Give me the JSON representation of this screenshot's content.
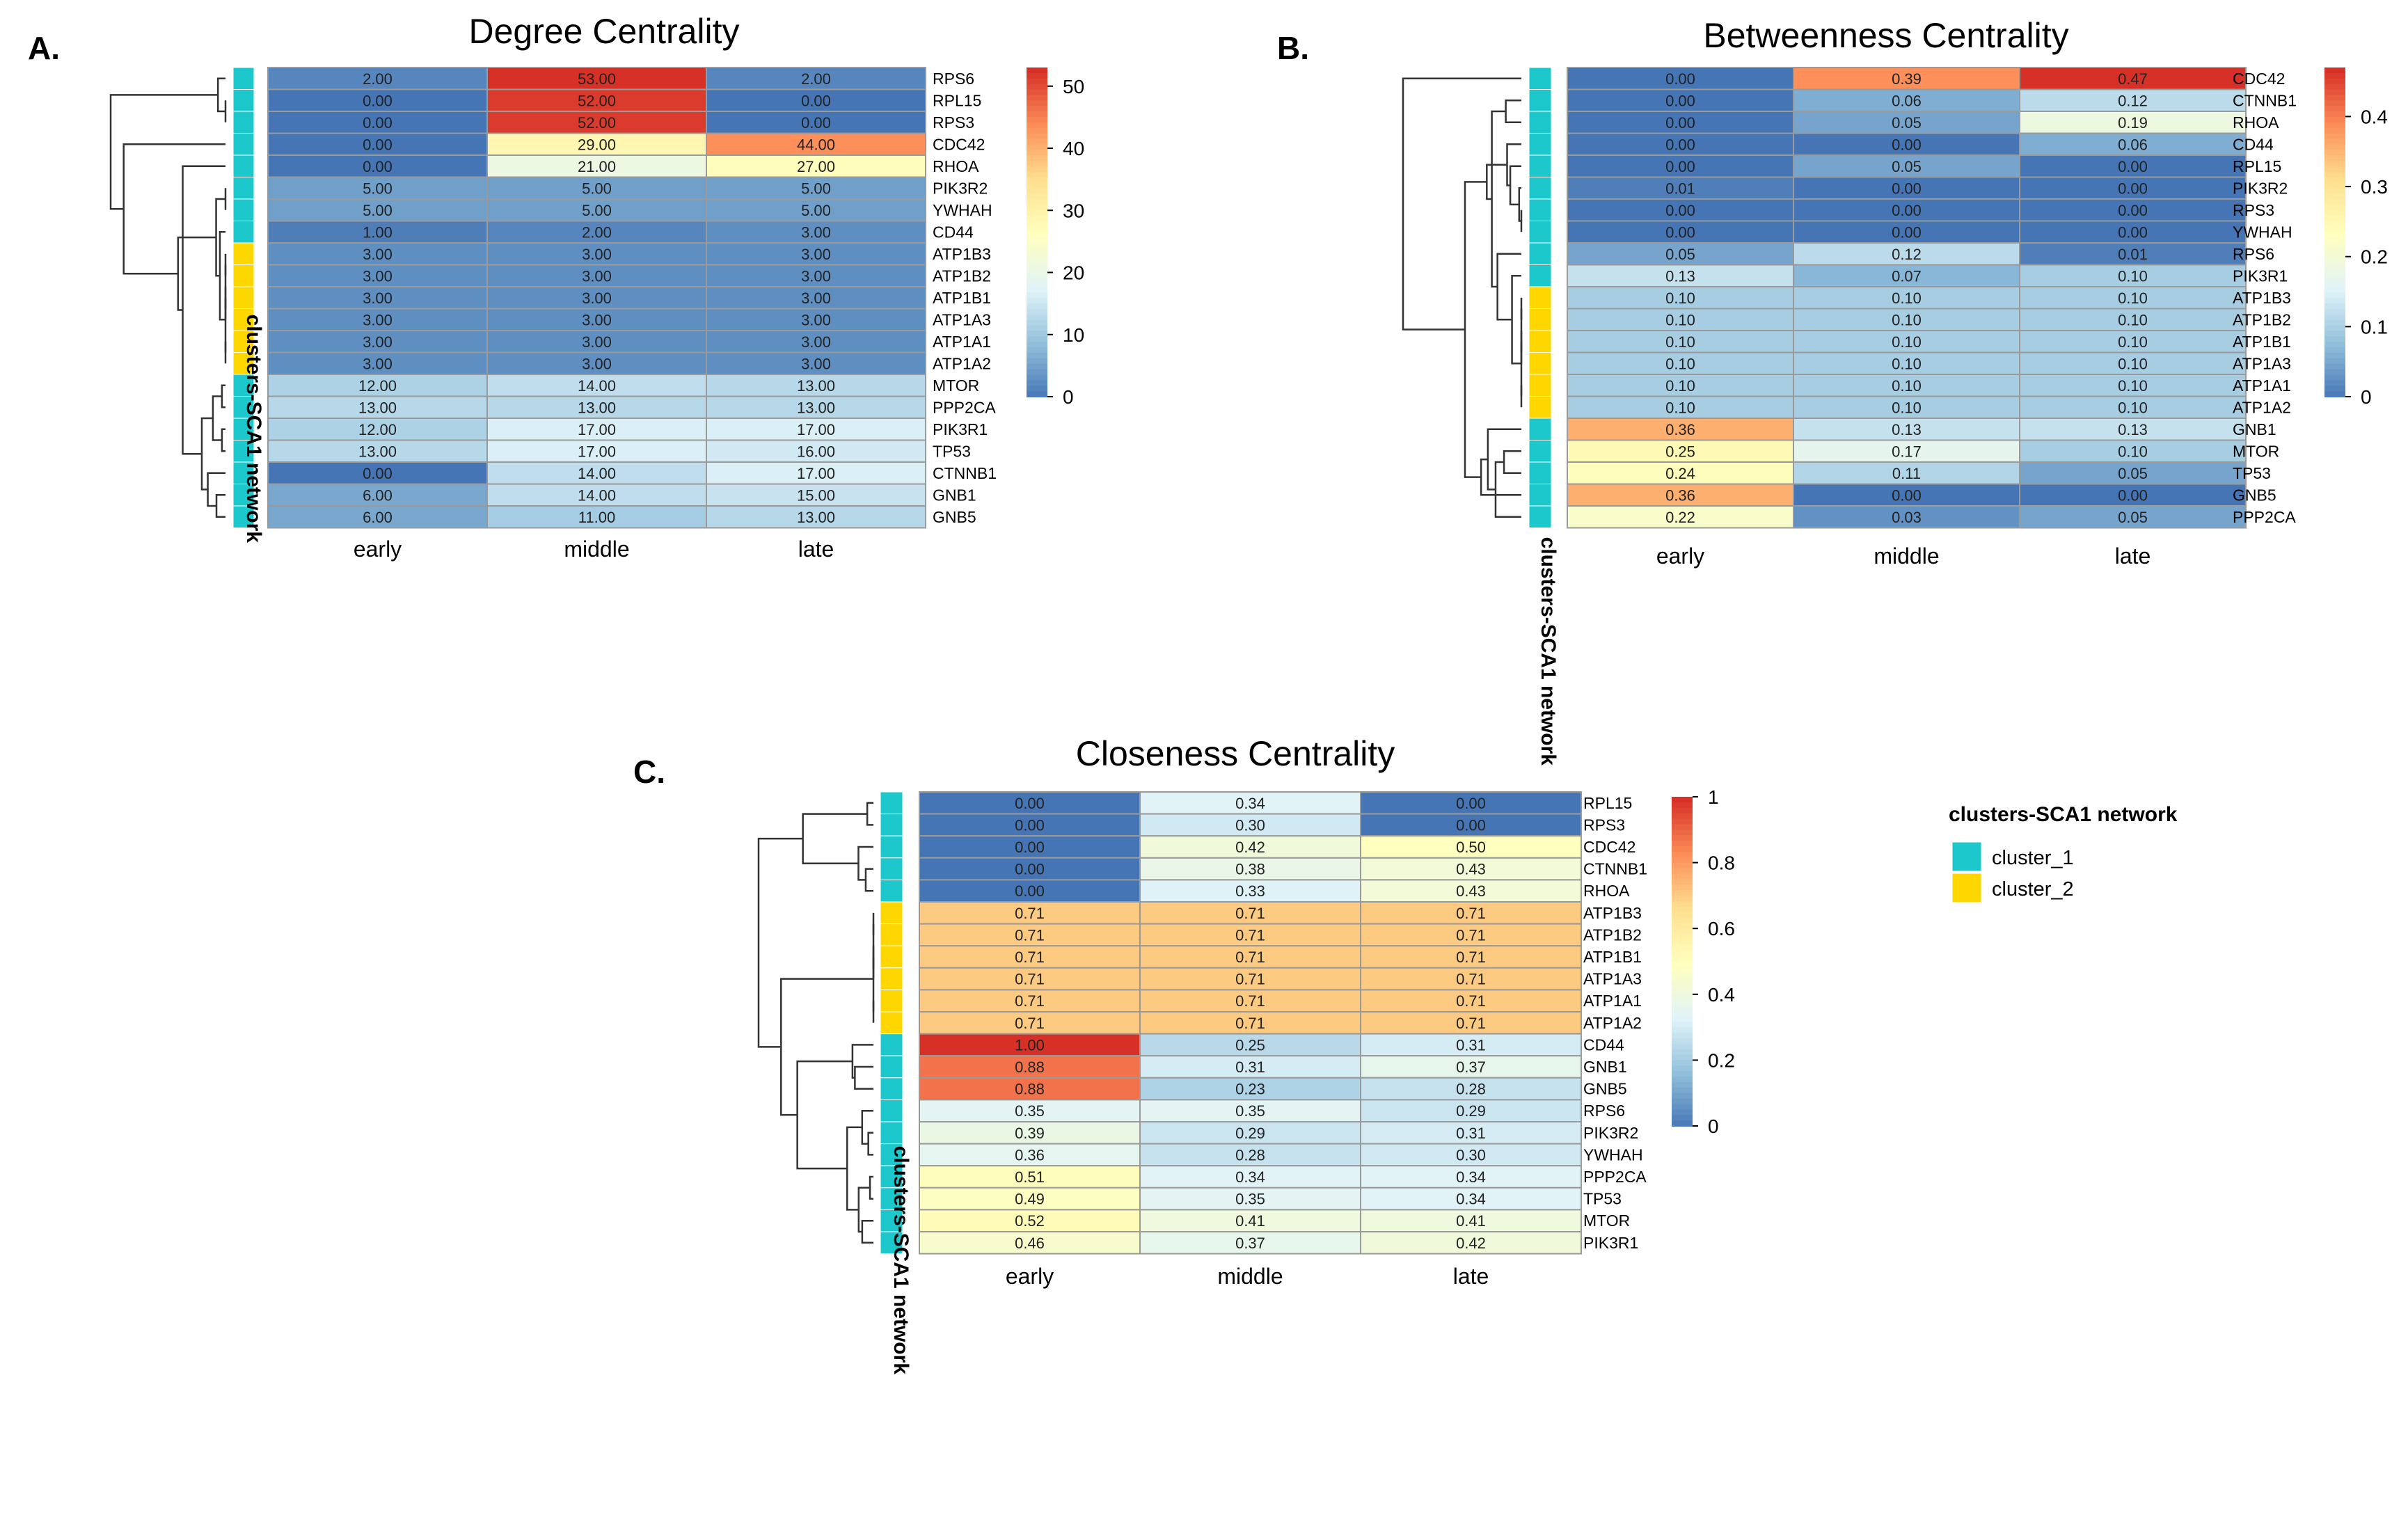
{
  "chart_data": [
    {
      "type": "heatmap",
      "panel_letter": "A.",
      "title": "Degree Centrality",
      "columns": [
        "early",
        "middle",
        "late"
      ],
      "rows": [
        "RPS6",
        "RPL15",
        "RPS3",
        "CDC42",
        "RHOA",
        "PIK3R2",
        "YWHAH",
        "CD44",
        "ATP1B3",
        "ATP1B2",
        "ATP1B1",
        "ATP1A3",
        "ATP1A1",
        "ATP1A2",
        "MTOR",
        "PPP2CA",
        "PIK3R1",
        "TP53",
        "CTNNB1",
        "GNB1",
        "GNB5"
      ],
      "values": [
        [
          "2.00",
          "53.00",
          "2.00"
        ],
        [
          "0.00",
          "52.00",
          "0.00"
        ],
        [
          "0.00",
          "52.00",
          "0.00"
        ],
        [
          "0.00",
          "29.00",
          "44.00"
        ],
        [
          "0.00",
          "21.00",
          "27.00"
        ],
        [
          "5.00",
          "5.00",
          "5.00"
        ],
        [
          "5.00",
          "5.00",
          "5.00"
        ],
        [
          "1.00",
          "2.00",
          "3.00"
        ],
        [
          "3.00",
          "3.00",
          "3.00"
        ],
        [
          "3.00",
          "3.00",
          "3.00"
        ],
        [
          "3.00",
          "3.00",
          "3.00"
        ],
        [
          "3.00",
          "3.00",
          "3.00"
        ],
        [
          "3.00",
          "3.00",
          "3.00"
        ],
        [
          "3.00",
          "3.00",
          "3.00"
        ],
        [
          "12.00",
          "14.00",
          "13.00"
        ],
        [
          "13.00",
          "13.00",
          "13.00"
        ],
        [
          "12.00",
          "17.00",
          "17.00"
        ],
        [
          "13.00",
          "17.00",
          "16.00"
        ],
        [
          "0.00",
          "14.00",
          "17.00"
        ],
        [
          "6.00",
          "14.00",
          "15.00"
        ],
        [
          "6.00",
          "11.00",
          "13.00"
        ]
      ],
      "clusters": [
        "cluster_1",
        "cluster_1",
        "cluster_1",
        "cluster_1",
        "cluster_1",
        "cluster_1",
        "cluster_1",
        "cluster_1",
        "cluster_2",
        "cluster_2",
        "cluster_2",
        "cluster_2",
        "cluster_2",
        "cluster_2",
        "cluster_1",
        "cluster_1",
        "cluster_1",
        "cluster_1",
        "cluster_1",
        "cluster_1",
        "cluster_1"
      ],
      "color_range": [
        0,
        53
      ],
      "colorbar_ticks": [
        "50",
        "40",
        "30",
        "20",
        "10",
        "0"
      ],
      "colorbar_tick_values": [
        50,
        40,
        30,
        20,
        10,
        0
      ],
      "annotation_label": "clusters-SCA1 network"
    },
    {
      "type": "heatmap",
      "panel_letter": "B.",
      "title": "Betweenness Centrality",
      "columns": [
        "early",
        "middle",
        "late"
      ],
      "rows": [
        "CDC42",
        "CTNNB1",
        "RHOA",
        "CD44",
        "RPL15",
        "PIK3R2",
        "RPS3",
        "YWHAH",
        "RPS6",
        "PIK3R1",
        "ATP1B3",
        "ATP1B2",
        "ATP1B1",
        "ATP1A3",
        "ATP1A1",
        "ATP1A2",
        "GNB1",
        "MTOR",
        "TP53",
        "GNB5",
        "PPP2CA"
      ],
      "values": [
        [
          "0.00",
          "0.39",
          "0.47"
        ],
        [
          "0.00",
          "0.06",
          "0.12"
        ],
        [
          "0.00",
          "0.05",
          "0.19"
        ],
        [
          "0.00",
          "0.00",
          "0.06"
        ],
        [
          "0.00",
          "0.05",
          "0.00"
        ],
        [
          "0.01",
          "0.00",
          "0.00"
        ],
        [
          "0.00",
          "0.00",
          "0.00"
        ],
        [
          "0.00",
          "0.00",
          "0.00"
        ],
        [
          "0.05",
          "0.12",
          "0.01"
        ],
        [
          "0.13",
          "0.07",
          "0.10"
        ],
        [
          "0.10",
          "0.10",
          "0.10"
        ],
        [
          "0.10",
          "0.10",
          "0.10"
        ],
        [
          "0.10",
          "0.10",
          "0.10"
        ],
        [
          "0.10",
          "0.10",
          "0.10"
        ],
        [
          "0.10",
          "0.10",
          "0.10"
        ],
        [
          "0.10",
          "0.10",
          "0.10"
        ],
        [
          "0.36",
          "0.13",
          "0.13"
        ],
        [
          "0.25",
          "0.17",
          "0.10"
        ],
        [
          "0.24",
          "0.11",
          "0.05"
        ],
        [
          "0.36",
          "0.00",
          "0.00"
        ],
        [
          "0.22",
          "0.03",
          "0.05"
        ]
      ],
      "clusters": [
        "cluster_1",
        "cluster_1",
        "cluster_1",
        "cluster_1",
        "cluster_1",
        "cluster_1",
        "cluster_1",
        "cluster_1",
        "cluster_1",
        "cluster_1",
        "cluster_2",
        "cluster_2",
        "cluster_2",
        "cluster_2",
        "cluster_2",
        "cluster_2",
        "cluster_1",
        "cluster_1",
        "cluster_1",
        "cluster_1",
        "cluster_1"
      ],
      "color_range": [
        0,
        0.47
      ],
      "colorbar_ticks": [
        "0.4",
        "0.3",
        "0.2",
        "0.1",
        "0"
      ],
      "colorbar_tick_values": [
        0.4,
        0.3,
        0.2,
        0.1,
        0
      ],
      "annotation_label": "clusters-SCA1 network"
    },
    {
      "type": "heatmap",
      "panel_letter": "C.",
      "title": "Closeness Centrality",
      "columns": [
        "early",
        "middle",
        "late"
      ],
      "rows": [
        "RPL15",
        "RPS3",
        "CDC42",
        "CTNNB1",
        "RHOA",
        "ATP1B3",
        "ATP1B2",
        "ATP1B1",
        "ATP1A3",
        "ATP1A1",
        "ATP1A2",
        "CD44",
        "GNB1",
        "GNB5",
        "RPS6",
        "PIK3R2",
        "YWHAH",
        "PPP2CA",
        "TP53",
        "MTOR",
        "PIK3R1"
      ],
      "values": [
        [
          "0.00",
          "0.34",
          "0.00"
        ],
        [
          "0.00",
          "0.30",
          "0.00"
        ],
        [
          "0.00",
          "0.42",
          "0.50"
        ],
        [
          "0.00",
          "0.38",
          "0.43"
        ],
        [
          "0.00",
          "0.33",
          "0.43"
        ],
        [
          "0.71",
          "0.71",
          "0.71"
        ],
        [
          "0.71",
          "0.71",
          "0.71"
        ],
        [
          "0.71",
          "0.71",
          "0.71"
        ],
        [
          "0.71",
          "0.71",
          "0.71"
        ],
        [
          "0.71",
          "0.71",
          "0.71"
        ],
        [
          "0.71",
          "0.71",
          "0.71"
        ],
        [
          "1.00",
          "0.25",
          "0.31"
        ],
        [
          "0.88",
          "0.31",
          "0.37"
        ],
        [
          "0.88",
          "0.23",
          "0.28"
        ],
        [
          "0.35",
          "0.35",
          "0.29"
        ],
        [
          "0.39",
          "0.29",
          "0.31"
        ],
        [
          "0.36",
          "0.28",
          "0.30"
        ],
        [
          "0.51",
          "0.34",
          "0.34"
        ],
        [
          "0.49",
          "0.35",
          "0.34"
        ],
        [
          "0.52",
          "0.41",
          "0.41"
        ],
        [
          "0.46",
          "0.37",
          "0.42"
        ]
      ],
      "clusters": [
        "cluster_1",
        "cluster_1",
        "cluster_1",
        "cluster_1",
        "cluster_1",
        "cluster_2",
        "cluster_2",
        "cluster_2",
        "cluster_2",
        "cluster_2",
        "cluster_2",
        "cluster_1",
        "cluster_1",
        "cluster_1",
        "cluster_1",
        "cluster_1",
        "cluster_1",
        "cluster_1",
        "cluster_1",
        "cluster_1",
        "cluster_1"
      ],
      "color_range": [
        0,
        1
      ],
      "colorbar_ticks": [
        "1",
        "0.8",
        "0.6",
        "0.4",
        "0.2",
        "0"
      ],
      "colorbar_tick_values": [
        1,
        0.8,
        0.6,
        0.4,
        0.2,
        0
      ],
      "annotation_label": "clusters-SCA1 network"
    }
  ],
  "legend": {
    "title": "clusters-SCA1 network",
    "items": [
      {
        "label": "cluster_1",
        "color": "#1DC8CC"
      },
      {
        "label": "cluster_2",
        "color": "#FFD700"
      }
    ]
  },
  "colors": {
    "scale": [
      "#4575B4",
      "#91BFDB",
      "#E0F3F8",
      "#FFFFBF",
      "#FEE090",
      "#FC8D59",
      "#D73027"
    ],
    "cell_border": "#9a9a9a",
    "text": "#000000"
  }
}
